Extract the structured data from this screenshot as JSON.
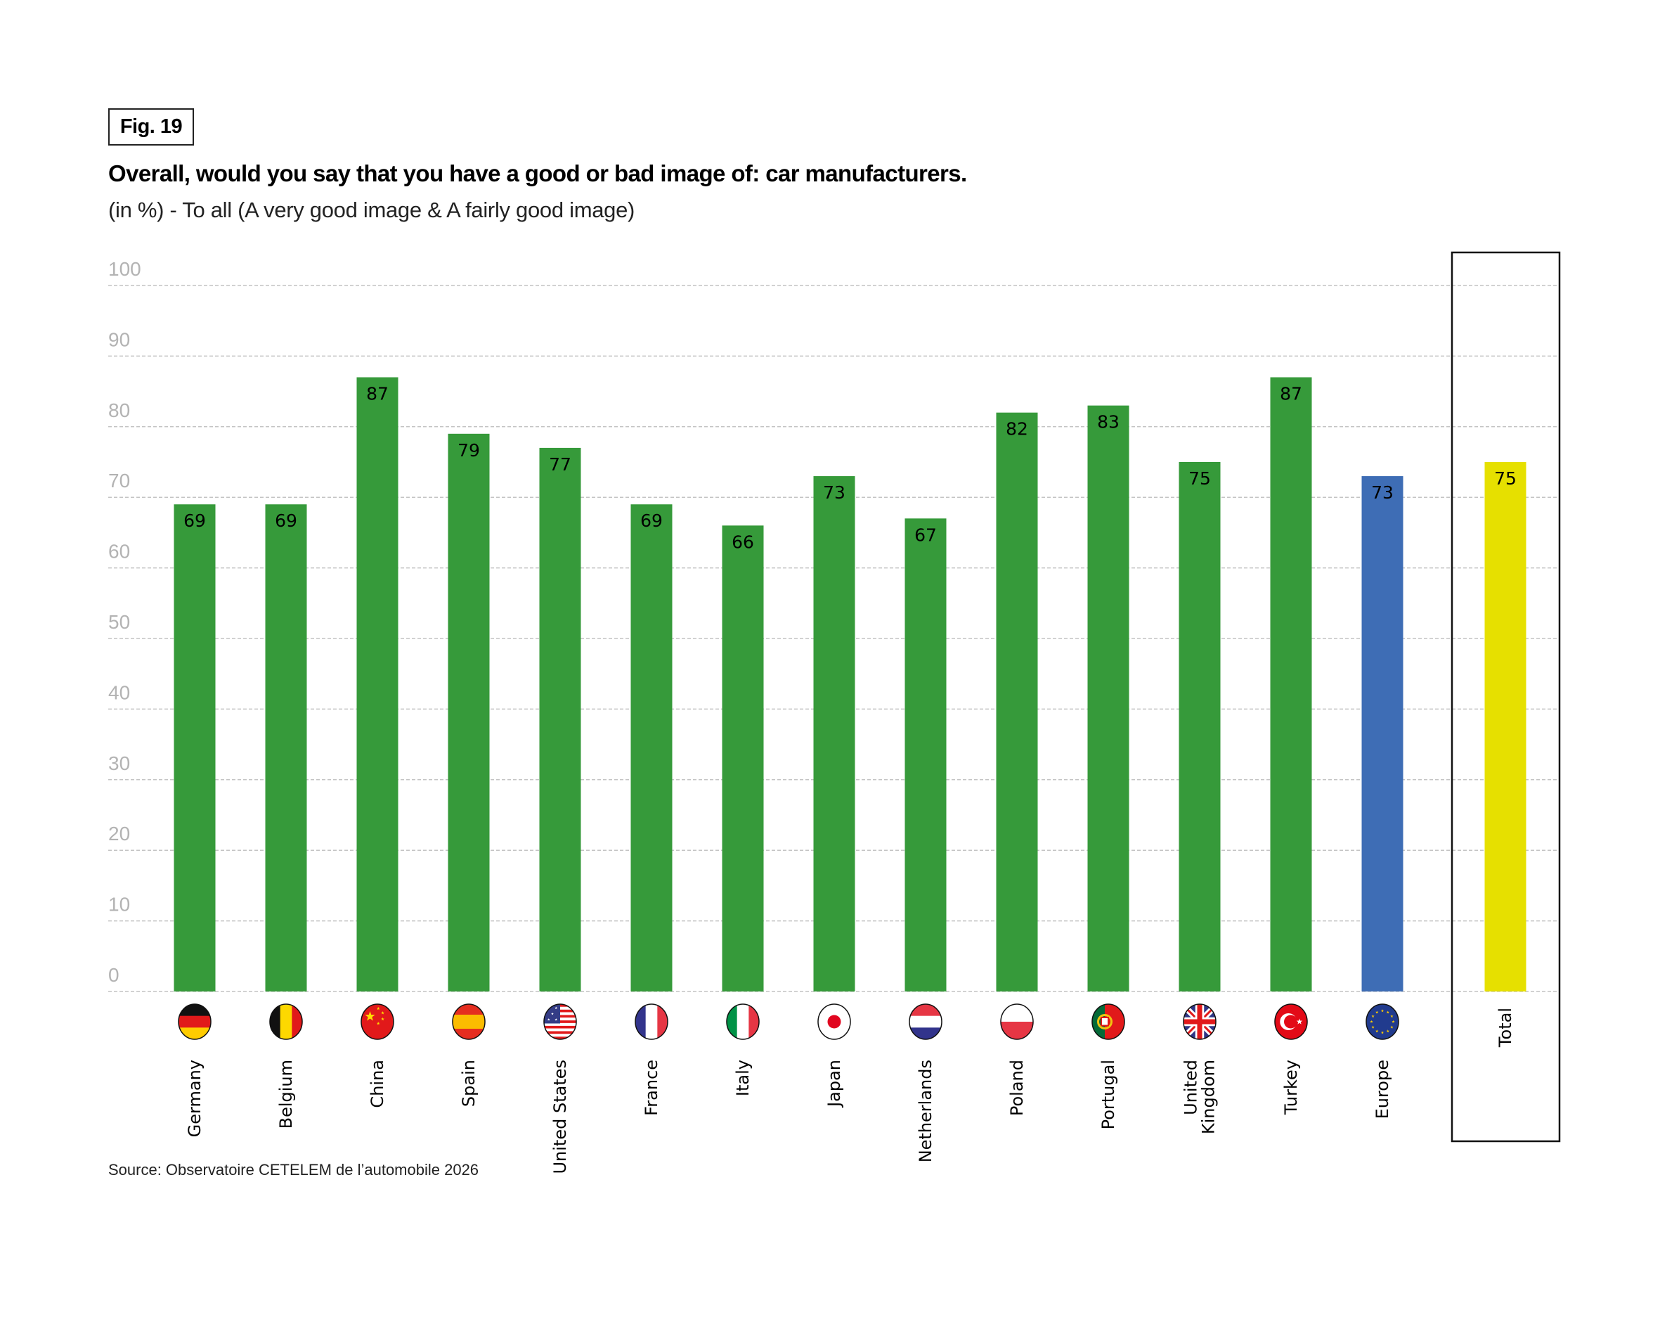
{
  "figure_label": "Fig. 19",
  "title": "Overall, would you say that you have a good or bad image of: car manufacturers.",
  "subtitle": "(in %) - To all (A very good image & A fairly good image)",
  "source": "Source: Observatoire CETELEM de l’automobile 2026",
  "colors": {
    "country": "#369a3a",
    "europe": "#3e6db5",
    "total": "#e6e000",
    "grid": "#c4c4c4",
    "tick_text": "#b3b3b3"
  },
  "chart_data": {
    "type": "bar",
    "title": "Overall, would you say that you have a good or bad image of: car manufacturers.",
    "subtitle": "(in %) - To all (A very good image & A fairly good image)",
    "xlabel": "",
    "ylabel": "",
    "ylim": [
      0,
      100
    ],
    "yticks": [
      0,
      10,
      20,
      30,
      40,
      50,
      60,
      70,
      80,
      90,
      100
    ],
    "grid": true,
    "grid_style": "dashed horizontal",
    "categories": [
      "Germany",
      "Belgium",
      "China",
      "Spain",
      "United States",
      "France",
      "Italy",
      "Japan",
      "Netherlands",
      "Poland",
      "Portugal",
      "United Kingdom",
      "Turkey",
      "Europe",
      "Total"
    ],
    "values": [
      69,
      69,
      87,
      79,
      77,
      69,
      66,
      73,
      67,
      82,
      83,
      75,
      87,
      73,
      75
    ],
    "bars": [
      {
        "label": "Germany",
        "label_lines": [
          "Germany"
        ],
        "value": 69,
        "group": "country",
        "flag": "germany-flag-icon"
      },
      {
        "label": "Belgium",
        "label_lines": [
          "Belgium"
        ],
        "value": 69,
        "group": "country",
        "flag": "belgium-flag-icon"
      },
      {
        "label": "China",
        "label_lines": [
          "China"
        ],
        "value": 87,
        "group": "country",
        "flag": "china-flag-icon"
      },
      {
        "label": "Spain",
        "label_lines": [
          "Spain"
        ],
        "value": 79,
        "group": "country",
        "flag": "spain-flag-icon"
      },
      {
        "label": "United States",
        "label_lines": [
          "United States"
        ],
        "value": 77,
        "group": "country",
        "flag": "usa-flag-icon"
      },
      {
        "label": "France",
        "label_lines": [
          "France"
        ],
        "value": 69,
        "group": "country",
        "flag": "france-flag-icon"
      },
      {
        "label": "Italy",
        "label_lines": [
          "Italy"
        ],
        "value": 66,
        "group": "country",
        "flag": "italy-flag-icon"
      },
      {
        "label": "Japan",
        "label_lines": [
          "Japan"
        ],
        "value": 73,
        "group": "country",
        "flag": "japan-flag-icon"
      },
      {
        "label": "Netherlands",
        "label_lines": [
          "Netherlands"
        ],
        "value": 67,
        "group": "country",
        "flag": "netherlands-flag-icon"
      },
      {
        "label": "Poland",
        "label_lines": [
          "Poland"
        ],
        "value": 82,
        "group": "country",
        "flag": "poland-flag-icon"
      },
      {
        "label": "Portugal",
        "label_lines": [
          "Portugal"
        ],
        "value": 83,
        "group": "country",
        "flag": "portugal-flag-icon"
      },
      {
        "label": "United Kingdom",
        "label_lines": [
          "United",
          "Kingdom"
        ],
        "value": 75,
        "group": "country",
        "flag": "uk-flag-icon"
      },
      {
        "label": "Turkey",
        "label_lines": [
          "Turkey"
        ],
        "value": 87,
        "group": "country",
        "flag": "turkey-flag-icon"
      },
      {
        "label": "Europe",
        "label_lines": [
          "Europe"
        ],
        "value": 73,
        "group": "europe",
        "flag": "eu-flag-icon"
      },
      {
        "label": "Total",
        "label_lines": [
          "Total"
        ],
        "value": 75,
        "group": "total",
        "flag": null,
        "highlighted_box": true
      }
    ],
    "legend": null
  }
}
